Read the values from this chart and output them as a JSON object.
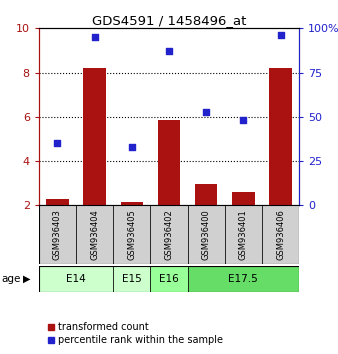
{
  "title": "GDS4591 / 1458496_at",
  "samples": [
    "GSM936403",
    "GSM936404",
    "GSM936405",
    "GSM936402",
    "GSM936400",
    "GSM936401",
    "GSM936406"
  ],
  "transformed_count": [
    2.3,
    8.2,
    2.15,
    5.85,
    2.95,
    2.6,
    8.2
  ],
  "percentile_rank": [
    35,
    95,
    33,
    87,
    53,
    48,
    96
  ],
  "age_groups": [
    {
      "label": "E14",
      "start": 0,
      "end": 2,
      "color": "#ccffcc"
    },
    {
      "label": "E15",
      "start": 2,
      "end": 3,
      "color": "#ccffcc"
    },
    {
      "label": "E16",
      "start": 3,
      "end": 4,
      "color": "#99ff99"
    },
    {
      "label": "E17.5",
      "start": 4,
      "end": 7,
      "color": "#66dd66"
    }
  ],
  "ylim_left": [
    2,
    10
  ],
  "ylim_right": [
    0,
    100
  ],
  "yticks_left": [
    2,
    4,
    6,
    8,
    10
  ],
  "yticks_right": [
    0,
    25,
    50,
    75,
    100
  ],
  "ytick_labels_right": [
    "0",
    "25",
    "50",
    "75",
    "100%"
  ],
  "bar_color": "#aa1111",
  "dot_color": "#2222cc",
  "bar_width": 0.6,
  "legend_red_label": "transformed count",
  "legend_blue_label": "percentile rank within the sample",
  "age_label": "age"
}
